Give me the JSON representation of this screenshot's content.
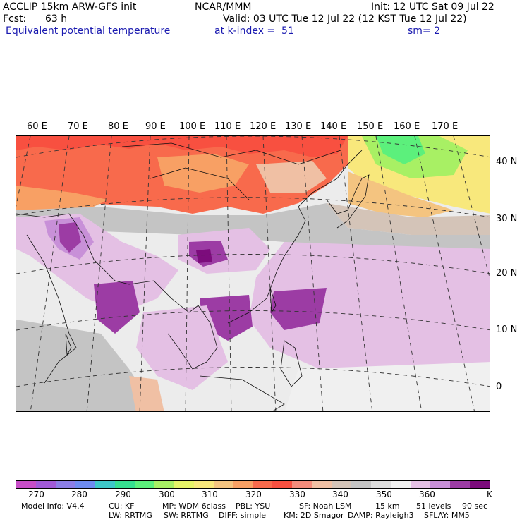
{
  "header": {
    "model": "ACCLIP 15km ARW-GFS init",
    "org": "NCAR/MMM",
    "init": "Init: 12 UTC Sat 09 Jul 22",
    "fcst_label": "Fcst:",
    "fcst_value": "63 h",
    "valid": "Valid: 03 UTC Tue 12 Jul 22 (12 KST Tue 12 Jul 22)",
    "field": "Equivalent potential temperature",
    "level": "at k-index =  51",
    "smooth": "sm= 2"
  },
  "map": {
    "lon_labels": [
      "60 E",
      "70 E",
      "80 E",
      "90 E",
      "100 E",
      "110 E",
      "120 E",
      "130 E",
      "140 E",
      "150 E",
      "160 E",
      "170 E"
    ],
    "lat_labels": [
      "40 N",
      "30 N",
      "20 N",
      "10 N",
      "0"
    ]
  },
  "colorbar": {
    "colors": [
      "#c84ec8",
      "#a25ad8",
      "#8c7ee6",
      "#6e8cf0",
      "#3ec8c8",
      "#36e090",
      "#5cf07c",
      "#a8f064",
      "#e6f468",
      "#f8e87c",
      "#f4c480",
      "#f8a064",
      "#f86a4c",
      "#f85040",
      "#f48c7c",
      "#f0c0a4",
      "#d4c4b8",
      "#c4c4c4",
      "#dcdcdc",
      "#f0f0f0",
      "#e4c0e4",
      "#c890d8",
      "#9c3ca4",
      "#7c0c7c"
    ],
    "ticks": [
      "270",
      "280",
      "290",
      "300",
      "310",
      "320",
      "330",
      "340",
      "350",
      "360"
    ],
    "unit": "K"
  },
  "footer": {
    "line1": [
      "Model Info: V4.4",
      "CU: KF",
      "MP: WDM 6class",
      "PBL: YSU",
      "SF: Noah LSM",
      "15 km",
      "51 levels",
      "90 sec"
    ],
    "line2": [
      "LW: RRTMG",
      "SW: RRTMG",
      "DIFF: simple",
      "KM: 2D Smagor",
      "DAMP: Rayleigh3",
      "SFLAY: MM5"
    ]
  }
}
